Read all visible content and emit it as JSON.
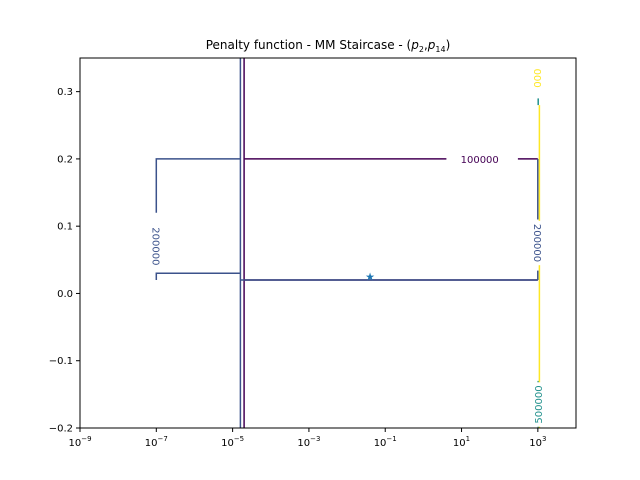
{
  "chart_data": {
    "type": "contour",
    "title_main": "Penalty function - MM Staircase - (",
    "title_p": "p",
    "title_sub1": "2",
    "title_sep": ",",
    "title_sub2": "14",
    "title_end": ")",
    "xlabel": "",
    "ylabel": "",
    "xscale": "log",
    "xlim": [
      1e-09,
      10000
    ],
    "ylim": [
      -0.2,
      0.35
    ],
    "grid": false,
    "x_ticks": [
      {
        "value": 1e-09,
        "base": "10",
        "exp": "−9"
      },
      {
        "value": 1e-07,
        "base": "10",
        "exp": "−7"
      },
      {
        "value": 1e-05,
        "base": "10",
        "exp": "−5"
      },
      {
        "value": 0.001,
        "base": "10",
        "exp": "−3"
      },
      {
        "value": 0.1,
        "base": "10",
        "exp": "−1"
      },
      {
        "value": 10,
        "base": "10",
        "exp": "1"
      },
      {
        "value": 1000,
        "base": "10",
        "exp": "3"
      }
    ],
    "y_ticks": [
      {
        "value": -0.2,
        "label": "−0.2"
      },
      {
        "value": -0.1,
        "label": "−0.1"
      },
      {
        "value": 0.0,
        "label": "0.0"
      },
      {
        "value": 0.1,
        "label": "0.1"
      },
      {
        "value": 0.2,
        "label": "0.2"
      },
      {
        "value": 0.3,
        "label": "0.3"
      }
    ],
    "colors": {
      "level_100000": "#440154",
      "level_200000": "#3b528b",
      "level_500000": "#21918c",
      "level_yellow": "#fde725",
      "marker": "#1f77b4",
      "axes": "#000000"
    },
    "contours": [
      {
        "level": "100000",
        "color_key": "level_100000",
        "points": [
          [
            2e-05,
            -0.2
          ],
          [
            2e-05,
            0.35
          ]
        ]
      },
      {
        "level": "100000",
        "color_key": "level_100000",
        "points": [
          [
            2e-05,
            0.2
          ],
          [
            4,
            0.2
          ]
        ]
      },
      {
        "level": "100000",
        "color_key": "level_100000",
        "points": [
          [
            300,
            0.2
          ],
          [
            1000,
            0.2
          ]
        ]
      },
      {
        "level": "100000",
        "color_key": "level_100000",
        "points": [
          [
            2e-05,
            0.02
          ],
          [
            1000,
            0.02
          ]
        ]
      },
      {
        "level": "200000",
        "color_key": "level_200000",
        "points": [
          [
            1.6e-05,
            -0.2
          ],
          [
            1.6e-05,
            0.35
          ]
        ]
      },
      {
        "level": "200000",
        "color_key": "level_200000",
        "points": [
          [
            1e-07,
            0.12
          ],
          [
            1e-07,
            0.2
          ],
          [
            1.6e-05,
            0.2
          ]
        ]
      },
      {
        "level": "200000",
        "color_key": "level_200000",
        "points": [
          [
            1e-07,
            0.02
          ],
          [
            1e-07,
            0.03
          ],
          [
            1.6e-05,
            0.03
          ]
        ]
      },
      {
        "level": "200000",
        "color_key": "level_200000",
        "points": [
          [
            1.6e-05,
            0.02
          ],
          [
            1000,
            0.02
          ]
        ]
      },
      {
        "level": "200000",
        "color_key": "level_200000",
        "points": [
          [
            1000,
            0.2
          ],
          [
            1000,
            0.11
          ]
        ]
      },
      {
        "level": "200000",
        "color_key": "level_200000",
        "points": [
          [
            1000,
            0.02
          ],
          [
            1000,
            0.034
          ]
        ]
      },
      {
        "level": "500000",
        "color_key": "level_500000",
        "points": [
          [
            1020,
            -0.2
          ],
          [
            1020,
            -0.13
          ]
        ]
      },
      {
        "level": "500000",
        "color_key": "level_500000",
        "points": [
          [
            1020,
            0.28
          ],
          [
            1020,
            0.29
          ]
        ]
      },
      {
        "level": "900000",
        "color_key": "level_yellow",
        "points": [
          [
            1100,
            -0.2
          ],
          [
            1100,
            0.28
          ]
        ]
      }
    ],
    "contour_labels": [
      {
        "text": "100000",
        "x": 30,
        "y": 0.2,
        "rotation": 0,
        "color_key": "level_100000"
      },
      {
        "text": "200000",
        "x": 1e-07,
        "y": 0.07,
        "rotation": 90,
        "color_key": "level_200000"
      },
      {
        "text": "200000",
        "x": 1000,
        "y": 0.075,
        "rotation": 90,
        "color_key": "level_200000"
      },
      {
        "text": "500000",
        "x": 1000,
        "y": -0.165,
        "rotation": -90,
        "color_key": "level_500000"
      },
      {
        "text": "000",
        "x": 1000,
        "y": 0.32,
        "rotation": 90,
        "color_key": "level_yellow"
      }
    ],
    "marker": {
      "x": 0.04,
      "y": 0.025,
      "symbol": "★"
    }
  }
}
